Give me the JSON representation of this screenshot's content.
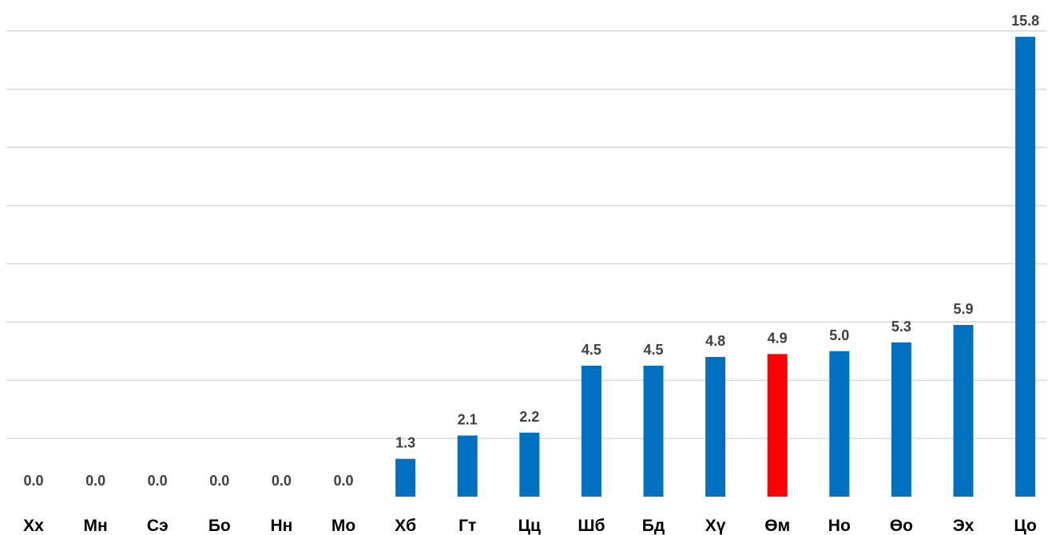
{
  "chart_data": {
    "type": "bar",
    "categories": [
      "Хх",
      "Мн",
      "Сэ",
      "Бо",
      "Нн",
      "Мо",
      "Хб",
      "Гт",
      "Цц",
      "Шб",
      "Бд",
      "Хү",
      "Өм",
      "Но",
      "Өо",
      "Эх",
      "Цо"
    ],
    "values": [
      0.0,
      0.0,
      0.0,
      0.0,
      0.0,
      0.0,
      1.3,
      2.1,
      2.2,
      4.5,
      4.5,
      4.8,
      4.9,
      5.0,
      5.3,
      5.9,
      15.8
    ],
    "data_labels": [
      "0.0",
      "0.0",
      "0.0",
      "0.0",
      "0.0",
      "0.0",
      "1.3",
      "2.1",
      "2.2",
      "4.5",
      "4.5",
      "4.8",
      "4.9",
      "5.0",
      "5.3",
      "5.9",
      "15.8"
    ],
    "highlight_index": 12,
    "colors": {
      "bar": "#0070C0",
      "highlight": "#FF0000",
      "gridline": "#D9D9D9"
    },
    "title": "",
    "xlabel": "",
    "ylabel": "",
    "ylim": [
      0,
      16
    ],
    "grid": true,
    "legend": "none"
  }
}
